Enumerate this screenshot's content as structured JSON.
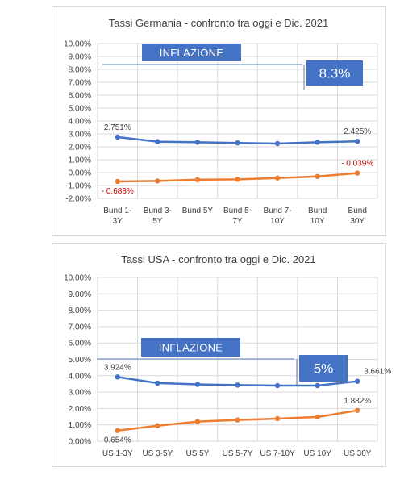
{
  "chart_data": [
    {
      "type": "line",
      "title": "Tassi Germania - confronto tra oggi e Dic. 2021",
      "categories": [
        "Bund 1-\n3Y",
        "Bund 3-\n5Y",
        "Bund 5Y",
        "Bund 5-\n7Y",
        "Bund 7-\n10Y",
        "Bund\n10Y",
        "Bund\n30Y"
      ],
      "yticks": [
        "10.00%",
        "9.00%",
        "8.00%",
        "7.00%",
        "6.00%",
        "5.00%",
        "4.00%",
        "3.00%",
        "2.00%",
        "1.00%",
        "0.00%",
        "-1.00%",
        "-2.00%"
      ],
      "ylim": [
        -2,
        10
      ],
      "series": [
        {
          "values": [
            2.751,
            2.4,
            2.35,
            2.3,
            2.25,
            2.35,
            2.425
          ],
          "color": "#4472c4"
        },
        {
          "values": [
            -0.688,
            -0.65,
            -0.55,
            -0.52,
            -0.42,
            -0.3,
            -0.039
          ],
          "color": "#ed7d31"
        }
      ],
      "data_labels": [
        {
          "series": 0,
          "index": 0,
          "text": "2.751%",
          "color": "#404040",
          "pos": "above"
        },
        {
          "series": 0,
          "index": 6,
          "text": "2.425%",
          "color": "#404040",
          "pos": "above"
        },
        {
          "series": 1,
          "index": 0,
          "text": "- 0.688%",
          "color": "#c00000",
          "pos": "below"
        },
        {
          "series": 1,
          "index": 6,
          "text": "- 0.039%",
          "color": "#c00000",
          "pos": "above"
        }
      ],
      "inflation": {
        "label": "INFLAZIONE",
        "value_text": "8.3%",
        "value": 8.3
      }
    },
    {
      "type": "line",
      "title": "Tassi USA - confronto tra oggi e Dic. 2021",
      "categories": [
        "US 1-3Y",
        "US 3-5Y",
        "US 5Y",
        "US 5-7Y",
        "US 7-10Y",
        "US 10Y",
        "US 30Y"
      ],
      "yticks": [
        "10.00%",
        "9.00%",
        "8.00%",
        "7.00%",
        "6.00%",
        "5.00%",
        "4.00%",
        "3.00%",
        "2.00%",
        "1.00%",
        "0.00%"
      ],
      "ylim": [
        0,
        10
      ],
      "series": [
        {
          "values": [
            3.924,
            3.55,
            3.47,
            3.43,
            3.4,
            3.4,
            3.661
          ],
          "color": "#4472c4"
        },
        {
          "values": [
            0.654,
            0.95,
            1.2,
            1.3,
            1.38,
            1.48,
            1.882
          ],
          "color": "#ed7d31"
        }
      ],
      "data_labels": [
        {
          "series": 0,
          "index": 0,
          "text": "3.924%",
          "color": "#404040",
          "pos": "above"
        },
        {
          "series": 0,
          "index": 6,
          "text": "3.661%",
          "color": "#404040",
          "pos": "above-right"
        },
        {
          "series": 1,
          "index": 0,
          "text": "0.654%",
          "color": "#404040",
          "pos": "below"
        },
        {
          "series": 1,
          "index": 6,
          "text": "1.882%",
          "color": "#404040",
          "pos": "above"
        }
      ],
      "inflation": {
        "label": "INFLAZIONE",
        "value_text": "5%",
        "value": 5
      }
    }
  ]
}
